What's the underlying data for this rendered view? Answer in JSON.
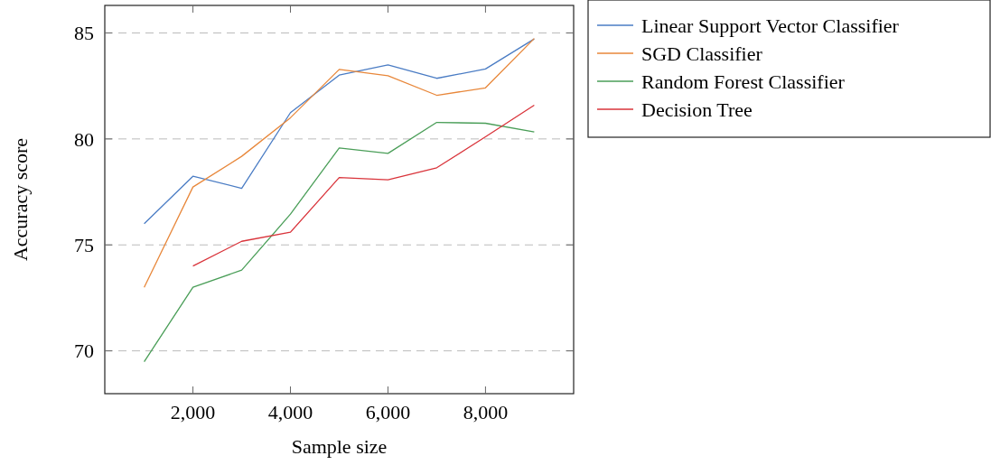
{
  "chart_data": {
    "type": "line",
    "xlabel": "Sample size",
    "ylabel": "Accuracy score",
    "x": [
      1000,
      2000,
      3000,
      4000,
      5000,
      6000,
      7000,
      8000,
      9000
    ],
    "xlim": [
      192,
      9808
    ],
    "xticks": [
      {
        "value": 2000,
        "label": "2,000"
      },
      {
        "value": 4000,
        "label": "4,000"
      },
      {
        "value": 6000,
        "label": "6,000"
      },
      {
        "value": 8000,
        "label": "8,000"
      }
    ],
    "ylim": [
      67.98,
      86.3
    ],
    "yticks": [
      70,
      75,
      80,
      85
    ],
    "grid": "y",
    "legend": "top right",
    "marker": "none",
    "line_style": "solid",
    "series": [
      {
        "name": "Linear Support Vector Classifier",
        "color": "#4a7cc4",
        "values": [
          76.0,
          78.24,
          77.67,
          81.24,
          83.01,
          83.49,
          82.86,
          83.3,
          84.72
        ]
      },
      {
        "name": "SGD Classifier",
        "color": "#e8873a",
        "values": [
          73.0,
          77.73,
          79.18,
          81.0,
          83.28,
          82.98,
          82.06,
          82.41,
          84.74
        ]
      },
      {
        "name": "Random Forest Classifier",
        "color": "#4a9e58",
        "values": [
          69.49,
          73.0,
          73.81,
          76.45,
          79.57,
          79.32,
          80.78,
          80.74,
          80.33
        ]
      },
      {
        "name": "Decision Tree",
        "color": "#d9333a",
        "values": [
          null,
          74.0,
          75.17,
          75.6,
          78.18,
          78.07,
          78.64,
          80.1,
          81.59
        ]
      }
    ]
  }
}
